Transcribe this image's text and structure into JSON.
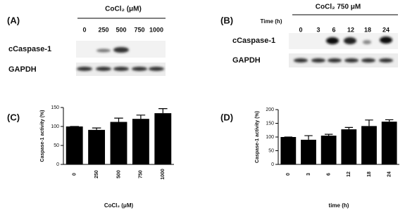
{
  "blots": [
    {
      "label": "(A)",
      "header": "CoCl₂ (μM)",
      "lanes": [
        "0",
        "250",
        "500",
        "750",
        "1000"
      ],
      "rows": [
        "cCaspase-1",
        "GAPDH"
      ]
    },
    {
      "label": "(B)",
      "header": "CoCl₂ 750 μM",
      "lane_title": "Time (h)",
      "lanes": [
        "0",
        "3",
        "6",
        "12",
        "18",
        "24"
      ],
      "rows": [
        "cCaspase-1",
        "GAPDH"
      ]
    }
  ],
  "chart_data": [
    {
      "type": "bar",
      "panel": "(C)",
      "ylabel": "Caspase-1 activity (%)",
      "xlabel": "CoCl₂ (μM)",
      "categories": [
        "0",
        "250",
        "500",
        "750",
        "1000"
      ],
      "values": [
        100,
        91,
        112,
        120,
        135
      ],
      "errors": [
        0,
        5,
        10,
        10,
        12
      ],
      "color": "#000000",
      "ylim": [
        0,
        150
      ],
      "yticks": [
        0,
        50,
        100,
        150
      ]
    },
    {
      "type": "bar",
      "panel": "(D)",
      "ylabel": "Caspase-1 activity (%)",
      "xlabel": "time (h)",
      "categories": [
        "0",
        "3",
        "6",
        "12",
        "18",
        "24"
      ],
      "values": [
        100,
        90,
        105,
        128,
        140,
        156
      ],
      "errors": [
        0,
        15,
        5,
        7,
        22,
        7
      ],
      "color": "#000000",
      "ylim": [
        0,
        200
      ],
      "yticks": [
        0,
        50,
        100,
        150,
        200
      ]
    }
  ]
}
